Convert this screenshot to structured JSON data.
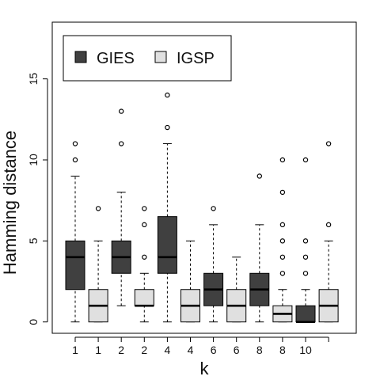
{
  "chart_data": {
    "type": "box",
    "xlabel": "k",
    "ylabel": "Hamming distance",
    "ylim": [
      -0.7,
      18.5
    ],
    "yticks": [
      0,
      5,
      10,
      15
    ],
    "grid": false,
    "legend": {
      "position": "top-left",
      "entries": [
        {
          "label": "GIES",
          "color": "#404040"
        },
        {
          "label": "IGSP",
          "color": "#e0e0e0"
        }
      ]
    },
    "categories": [
      "1",
      "1",
      "2",
      "2",
      "4",
      "4",
      "6",
      "6",
      "8",
      "8",
      "10",
      ""
    ],
    "boxes": [
      {
        "group": "GIES",
        "k": "1",
        "whisker_low": 0,
        "q1": 2,
        "median": 4,
        "q3": 5,
        "whisker_high": 9,
        "outliers": [
          10,
          11
        ]
      },
      {
        "group": "IGSP",
        "k": "1",
        "whisker_low": 0,
        "q1": 0,
        "median": 1,
        "q3": 2,
        "whisker_high": 5,
        "outliers": [
          7
        ]
      },
      {
        "group": "GIES",
        "k": "2",
        "whisker_low": 1,
        "q1": 3,
        "median": 4,
        "q3": 5,
        "whisker_high": 8,
        "outliers": [
          11,
          13
        ]
      },
      {
        "group": "IGSP",
        "k": "2",
        "whisker_low": 0,
        "q1": 1,
        "median": 1,
        "q3": 2,
        "whisker_high": 3,
        "outliers": [
          4,
          6,
          7
        ]
      },
      {
        "group": "GIES",
        "k": "4",
        "whisker_low": 0,
        "q1": 3,
        "median": 4,
        "q3": 6.5,
        "whisker_high": 11,
        "outliers": [
          12,
          14
        ]
      },
      {
        "group": "IGSP",
        "k": "4",
        "whisker_low": 0,
        "q1": 0,
        "median": 1,
        "q3": 2,
        "whisker_high": 5,
        "outliers": []
      },
      {
        "group": "GIES",
        "k": "6",
        "whisker_low": 0,
        "q1": 1,
        "median": 2,
        "q3": 3,
        "whisker_high": 6,
        "outliers": [
          7
        ]
      },
      {
        "group": "IGSP",
        "k": "6",
        "whisker_low": 0,
        "q1": 0,
        "median": 1,
        "q3": 2,
        "whisker_high": 4,
        "outliers": []
      },
      {
        "group": "GIES",
        "k": "8",
        "whisker_low": 0,
        "q1": 1,
        "median": 2,
        "q3": 3,
        "whisker_high": 6,
        "outliers": [
          9
        ]
      },
      {
        "group": "IGSP",
        "k": "8",
        "whisker_low": 0,
        "q1": 0,
        "median": 0.5,
        "q3": 1,
        "whisker_high": 2,
        "outliers": [
          3,
          4,
          5,
          6,
          8,
          10
        ]
      },
      {
        "group": "GIES",
        "k": "10",
        "whisker_low": 0,
        "q1": 0,
        "median": 0,
        "q3": 1,
        "whisker_high": 2,
        "outliers": [
          3,
          4,
          5,
          10
        ]
      },
      {
        "group": "IGSP",
        "k": "10",
        "whisker_low": 0,
        "q1": 0,
        "median": 1,
        "q3": 2,
        "whisker_high": 5,
        "outliers": [
          6,
          11
        ]
      }
    ]
  }
}
